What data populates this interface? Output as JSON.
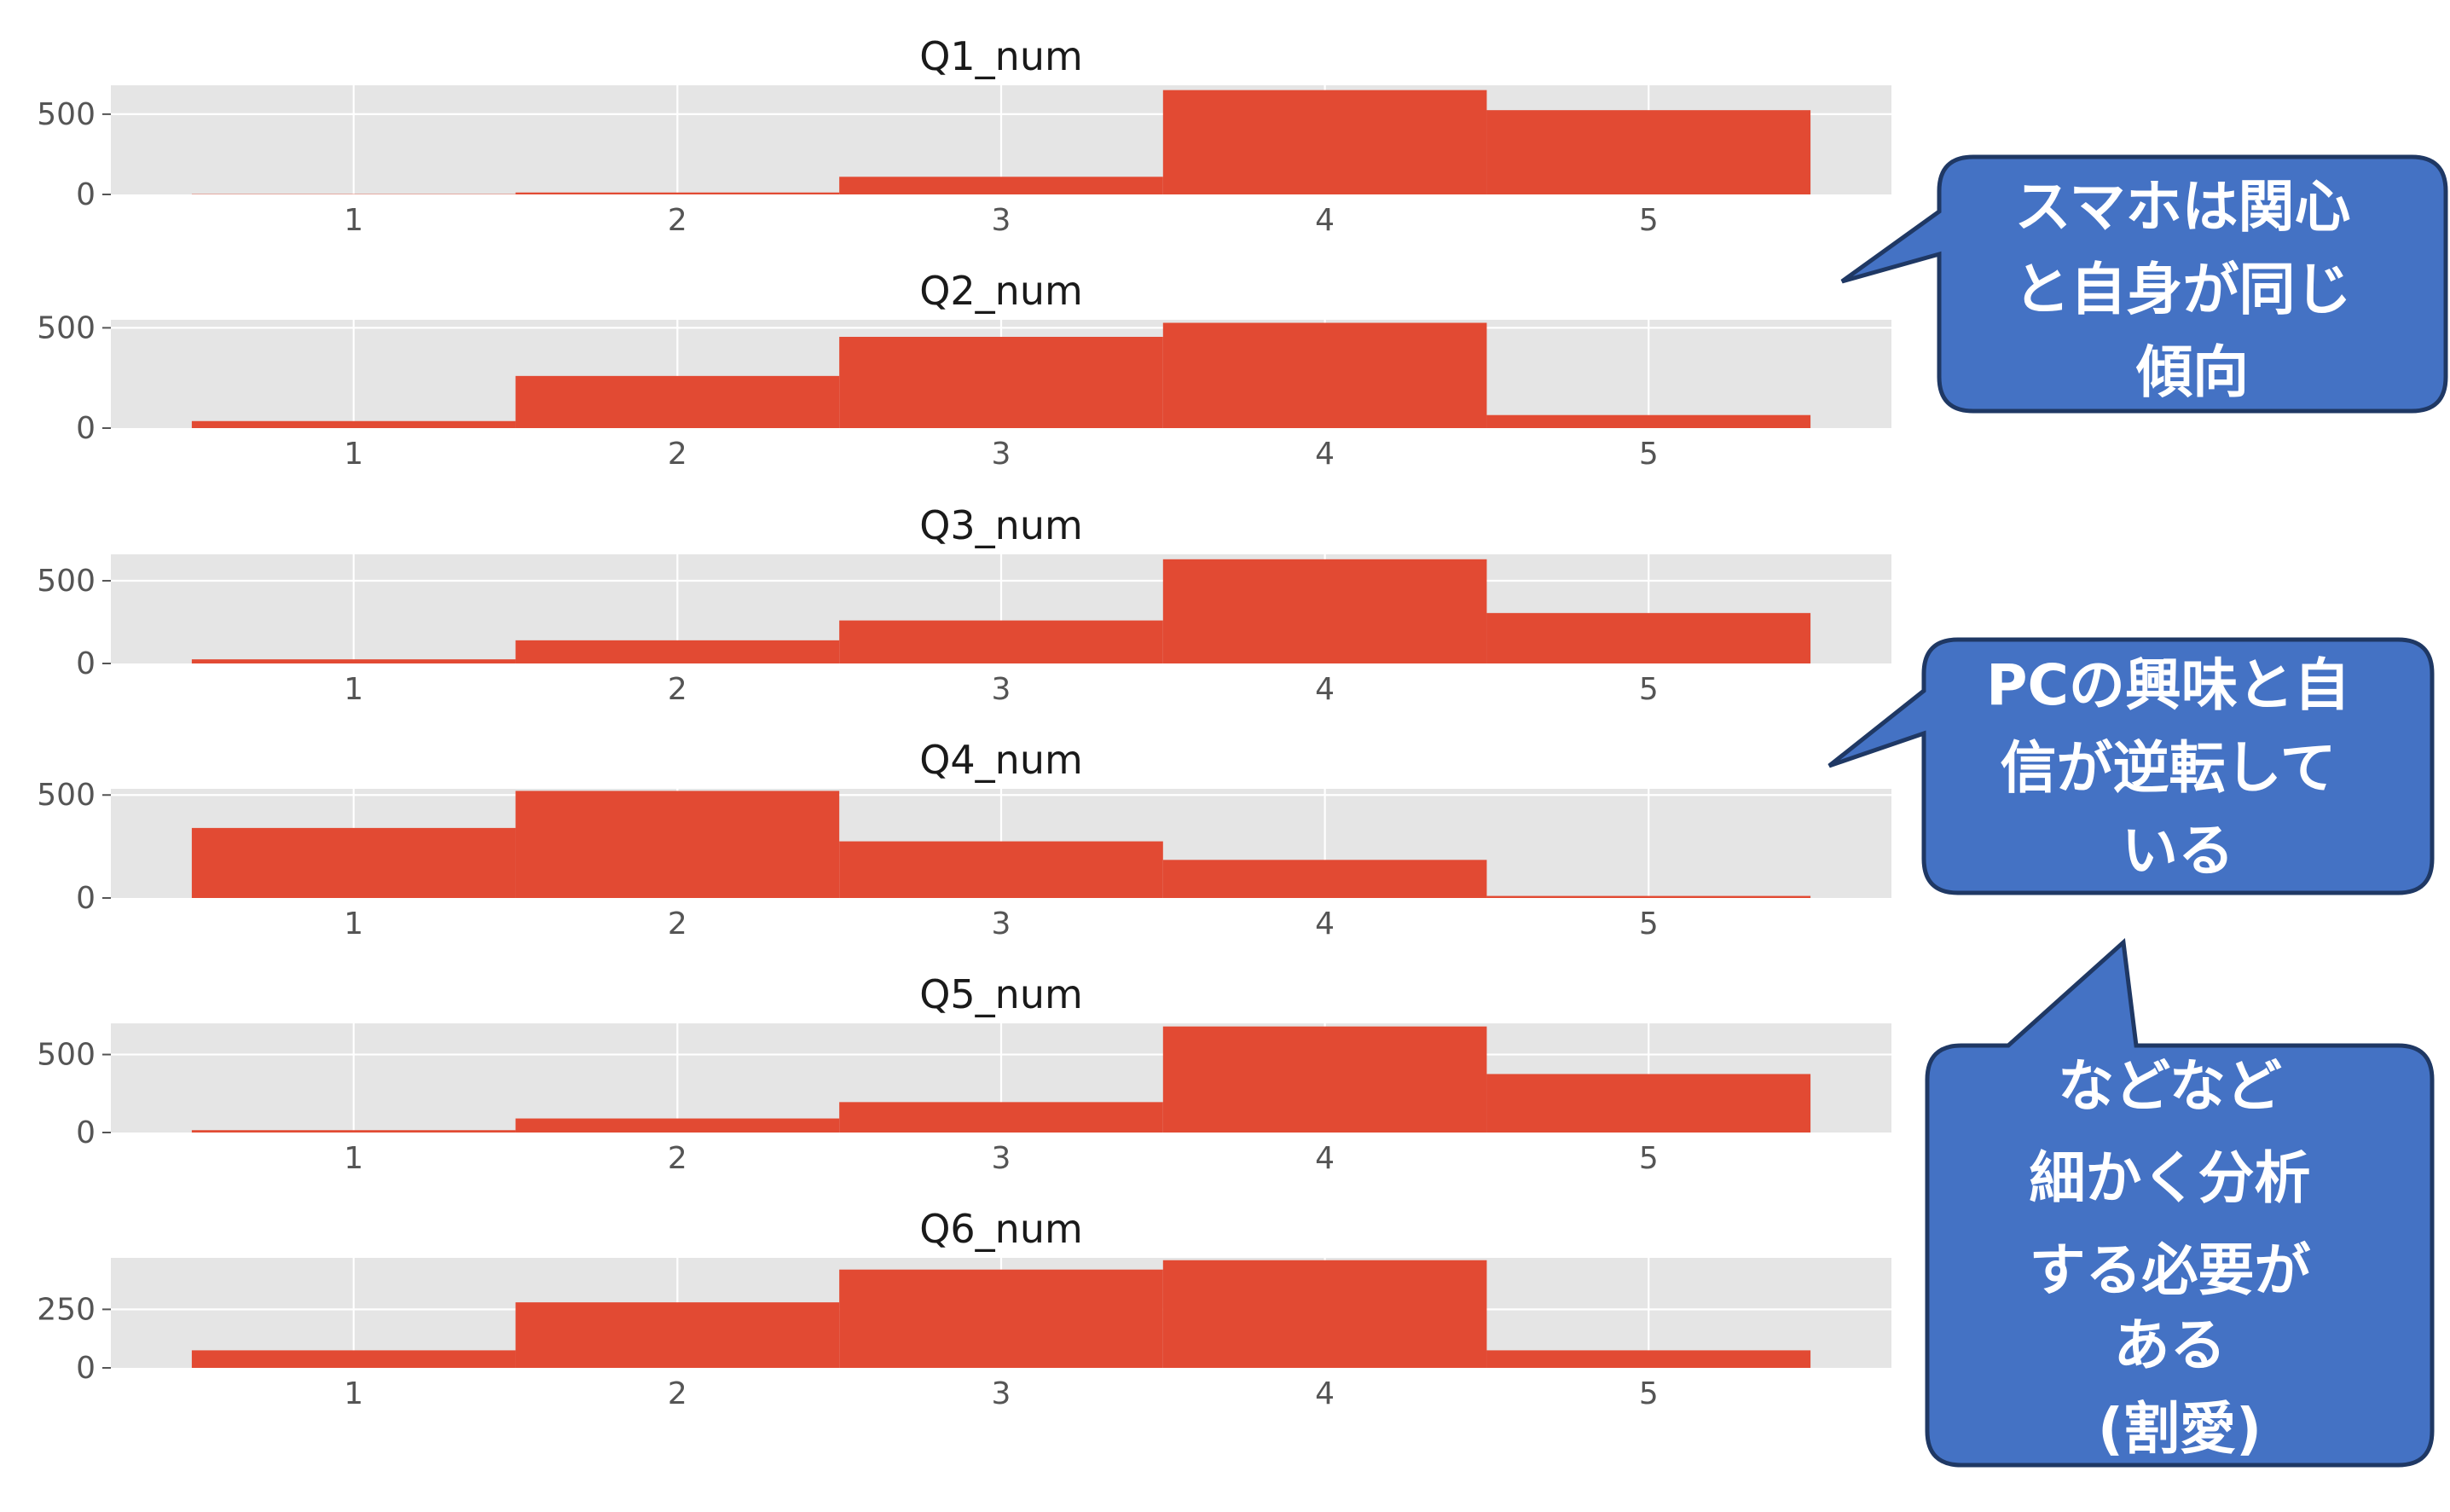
{
  "chart_data": [
    {
      "type": "bar",
      "title": "Q1_num",
      "categories": [
        1,
        2,
        3,
        4,
        5
      ],
      "values": [
        2,
        12,
        110,
        650,
        525
      ],
      "xlim": [
        0.25,
        5.75
      ],
      "ylim": [
        0,
        680
      ],
      "yticks": [
        0,
        500
      ],
      "grid": true
    },
    {
      "type": "bar",
      "title": "Q2_num",
      "categories": [
        1,
        2,
        3,
        4,
        5
      ],
      "values": [
        35,
        260,
        455,
        525,
        65
      ],
      "xlim": [
        0.25,
        5.75
      ],
      "ylim": [
        0,
        540
      ],
      "yticks": [
        0,
        500
      ],
      "grid": true
    },
    {
      "type": "bar",
      "title": "Q3_num",
      "categories": [
        1,
        2,
        3,
        4,
        5
      ],
      "values": [
        25,
        140,
        260,
        630,
        305
      ],
      "xlim": [
        0.25,
        5.75
      ],
      "ylim": [
        0,
        660
      ],
      "yticks": [
        0,
        500
      ],
      "grid": true
    },
    {
      "type": "bar",
      "title": "Q4_num",
      "categories": [
        1,
        2,
        3,
        4,
        5
      ],
      "values": [
        340,
        520,
        275,
        185,
        10
      ],
      "xlim": [
        0.25,
        5.75
      ],
      "ylim": [
        0,
        530
      ],
      "yticks": [
        0,
        500
      ],
      "grid": true
    },
    {
      "type": "bar",
      "title": "Q5_num",
      "categories": [
        1,
        2,
        3,
        4,
        5
      ],
      "values": [
        15,
        90,
        195,
        680,
        375
      ],
      "xlim": [
        0.25,
        5.75
      ],
      "ylim": [
        0,
        700
      ],
      "yticks": [
        0,
        500
      ],
      "grid": true
    },
    {
      "type": "bar",
      "title": "Q6_num",
      "categories": [
        1,
        2,
        3,
        4,
        5
      ],
      "values": [
        75,
        280,
        420,
        460,
        75
      ],
      "xlim": [
        0.25,
        5.75
      ],
      "ylim": [
        0,
        470
      ],
      "yticks": [
        0,
        250
      ],
      "grid": true
    }
  ],
  "colors": {
    "bar": "#e24a33",
    "panel_background": "#e5e5e5",
    "grid": "#ffffff",
    "callout_fill": "#4472c4",
    "callout_border": "#1f3864",
    "callout_text": "#ffffff"
  },
  "callouts": [
    {
      "lines": [
        "スマホは関心",
        "と自身が同じ",
        "傾向"
      ]
    },
    {
      "lines": [
        "PCの興味と自",
        "信が逆転して",
        "いる"
      ]
    },
    {
      "lines": [
        "などなど",
        "細かく分析",
        "する必要が",
        "ある",
        "(割愛)"
      ]
    }
  ]
}
